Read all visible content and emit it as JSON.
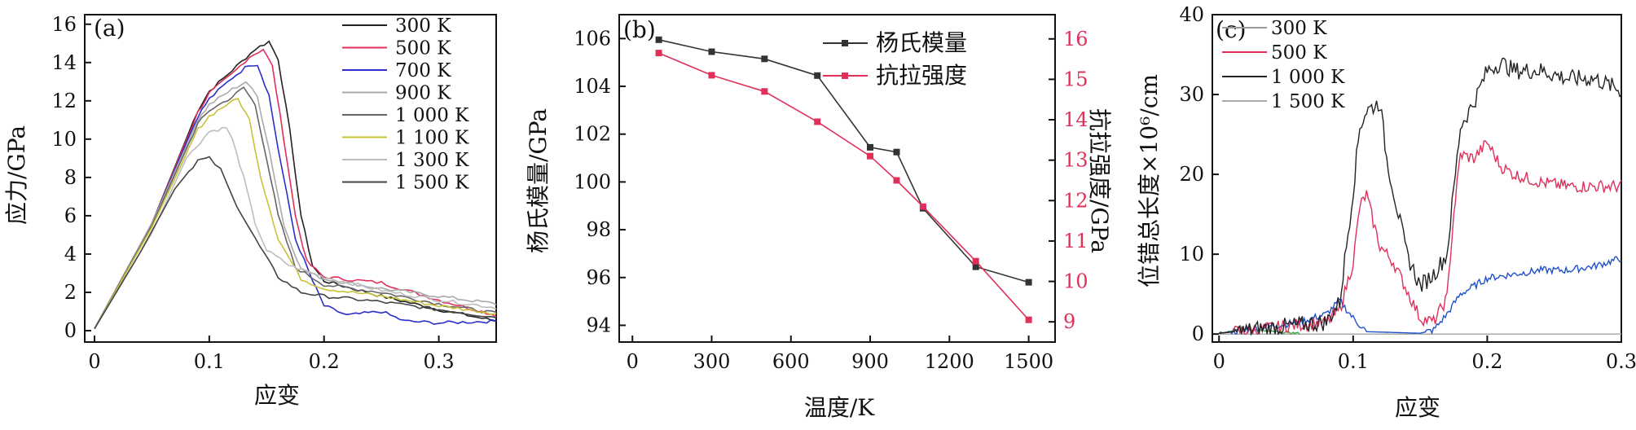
{
  "chart_data": [
    {
      "panel_label": "(a)",
      "type": "line",
      "xlabel": "应变",
      "ylabel": "应力/GPa",
      "xlim": [
        0,
        0.35
      ],
      "ylim": [
        0,
        16.5
      ],
      "x_ticks": [
        "0",
        "0.1",
        "0.2",
        "0.3"
      ],
      "x_tick_values": [
        0,
        0.1,
        0.2,
        0.3
      ],
      "y_ticks": [
        "0",
        "2",
        "4",
        "6",
        "8",
        "10",
        "12",
        "14",
        "16"
      ],
      "y_tick_values": [
        0,
        2,
        4,
        6,
        8,
        10,
        12,
        14,
        16
      ],
      "legend_position": "top-right",
      "series": [
        {
          "name": "300 K",
          "color": "#222222",
          "points": [
            [
              0,
              0.1
            ],
            [
              0.05,
              5.6
            ],
            [
              0.09,
              11.5
            ],
            [
              0.1,
              12.5
            ],
            [
              0.12,
              13.6
            ],
            [
              0.14,
              14.7
            ],
            [
              0.152,
              15.1
            ],
            [
              0.16,
              14.2
            ],
            [
              0.17,
              10.5
            ],
            [
              0.18,
              6.0
            ],
            [
              0.19,
              3.4
            ],
            [
              0.2,
              2.6
            ],
            [
              0.25,
              1.8
            ],
            [
              0.3,
              1.1
            ],
            [
              0.35,
              0.5
            ]
          ]
        },
        {
          "name": "500 K",
          "color": "#e0305a",
          "points": [
            [
              0,
              0.1
            ],
            [
              0.05,
              5.6
            ],
            [
              0.09,
              11.4
            ],
            [
              0.1,
              12.4
            ],
            [
              0.12,
              13.4
            ],
            [
              0.135,
              14.3
            ],
            [
              0.147,
              14.7
            ],
            [
              0.155,
              13.8
            ],
            [
              0.165,
              10.0
            ],
            [
              0.175,
              6.0
            ],
            [
              0.185,
              3.6
            ],
            [
              0.2,
              2.8
            ],
            [
              0.25,
              2.5
            ],
            [
              0.3,
              1.6
            ],
            [
              0.35,
              0.8
            ]
          ]
        },
        {
          "name": "700 K",
          "color": "#2a2fc9",
          "points": [
            [
              0,
              0.1
            ],
            [
              0.05,
              5.6
            ],
            [
              0.09,
              11.2
            ],
            [
              0.1,
              12.1
            ],
            [
              0.12,
              13.2
            ],
            [
              0.135,
              13.9
            ],
            [
              0.142,
              13.9
            ],
            [
              0.152,
              12.3
            ],
            [
              0.16,
              9.5
            ],
            [
              0.175,
              4.8
            ],
            [
              0.19,
              2.6
            ],
            [
              0.2,
              1.3
            ],
            [
              0.22,
              0.8
            ],
            [
              0.25,
              1.0
            ],
            [
              0.27,
              0.5
            ],
            [
              0.3,
              0.4
            ],
            [
              0.35,
              0.5
            ]
          ]
        },
        {
          "name": "900 K",
          "color": "#aaaaaa",
          "points": [
            [
              0,
              0.1
            ],
            [
              0.05,
              5.6
            ],
            [
              0.09,
              11.0
            ],
            [
              0.1,
              11.8
            ],
            [
              0.12,
              12.6
            ],
            [
              0.132,
              13.0
            ],
            [
              0.142,
              12.2
            ],
            [
              0.152,
              9.5
            ],
            [
              0.165,
              5.5
            ],
            [
              0.18,
              3.2
            ],
            [
              0.2,
              2.7
            ],
            [
              0.25,
              2.2
            ],
            [
              0.3,
              1.8
            ],
            [
              0.35,
              1.4
            ]
          ]
        },
        {
          "name": "1 000 K",
          "color": "#666666",
          "points": [
            [
              0,
              0.1
            ],
            [
              0.05,
              5.5
            ],
            [
              0.09,
              10.8
            ],
            [
              0.1,
              11.5
            ],
            [
              0.12,
              12.2
            ],
            [
              0.13,
              12.7
            ],
            [
              0.14,
              11.8
            ],
            [
              0.15,
              9.0
            ],
            [
              0.16,
              6.0
            ],
            [
              0.175,
              3.3
            ],
            [
              0.2,
              2.4
            ],
            [
              0.25,
              2.0
            ],
            [
              0.3,
              1.4
            ],
            [
              0.35,
              0.9
            ]
          ]
        },
        {
          "name": "1 100 K",
          "color": "#c9c236",
          "points": [
            [
              0,
              0.1
            ],
            [
              0.05,
              5.4
            ],
            [
              0.09,
              10.5
            ],
            [
              0.1,
              11.2
            ],
            [
              0.115,
              11.8
            ],
            [
              0.125,
              12.1
            ],
            [
              0.135,
              11.0
            ],
            [
              0.145,
              8.0
            ],
            [
              0.16,
              4.8
            ],
            [
              0.18,
              2.7
            ],
            [
              0.2,
              2.2
            ],
            [
              0.25,
              1.8
            ],
            [
              0.3,
              1.3
            ],
            [
              0.35,
              0.9
            ]
          ]
        },
        {
          "name": "1 300 K",
          "color": "#bdbdbd",
          "points": [
            [
              0,
              0.1
            ],
            [
              0.05,
              5.1
            ],
            [
              0.08,
              9.0
            ],
            [
              0.1,
              10.4
            ],
            [
              0.115,
              10.6
            ],
            [
              0.12,
              10.0
            ],
            [
              0.13,
              8.0
            ],
            [
              0.14,
              5.6
            ],
            [
              0.15,
              4.2
            ],
            [
              0.17,
              3.4
            ],
            [
              0.2,
              2.8
            ],
            [
              0.25,
              2.1
            ],
            [
              0.3,
              1.6
            ],
            [
              0.35,
              1.2
            ]
          ]
        },
        {
          "name": "1 500 K",
          "color": "#444444",
          "points": [
            [
              0,
              0.1
            ],
            [
              0.04,
              4.1
            ],
            [
              0.07,
              7.4
            ],
            [
              0.09,
              8.9
            ],
            [
              0.1,
              9.0
            ],
            [
              0.11,
              8.4
            ],
            [
              0.12,
              7.0
            ],
            [
              0.14,
              4.8
            ],
            [
              0.16,
              2.8
            ],
            [
              0.18,
              2.0
            ],
            [
              0.2,
              1.8
            ],
            [
              0.25,
              1.5
            ],
            [
              0.3,
              1.1
            ],
            [
              0.35,
              0.7
            ]
          ]
        }
      ]
    },
    {
      "panel_label": "(b)",
      "type": "line",
      "xlabel": "温度/K",
      "ylabel": "杨氏模量/GPa",
      "ylabel_right": "抗拉强度/GPa",
      "xlim": [
        -50,
        1600
      ],
      "ylim": [
        93.3,
        107
      ],
      "ylim_right": [
        8.5,
        16.6
      ],
      "x_ticks": [
        "0",
        "300",
        "600",
        "900",
        "1200",
        "1500"
      ],
      "x_tick_values": [
        0,
        300,
        600,
        900,
        1200,
        1500
      ],
      "y_ticks": [
        "94",
        "96",
        "98",
        "100",
        "102",
        "104",
        "106"
      ],
      "y_tick_values": [
        94,
        96,
        98,
        100,
        102,
        104,
        106
      ],
      "y_ticks_right": [
        "9",
        "10",
        "11",
        "12",
        "13",
        "14",
        "15",
        "16"
      ],
      "y_tick_values_right": [
        9,
        10,
        11,
        12,
        13,
        14,
        15,
        16
      ],
      "right_axis_color": "#e0305a",
      "legend_position": "top-right",
      "series": [
        {
          "name": "杨氏模量",
          "axis": "left",
          "color": "#333333",
          "marker": "square",
          "x": [
            100,
            300,
            500,
            700,
            900,
            1000,
            1100,
            1300,
            1500
          ],
          "values": [
            105.95,
            105.45,
            105.15,
            104.45,
            101.45,
            101.25,
            98.9,
            96.45,
            95.8
          ]
        },
        {
          "name": "抗拉强度",
          "axis": "right",
          "color": "#e0305a",
          "marker": "square",
          "x": [
            100,
            300,
            500,
            700,
            900,
            1000,
            1100,
            1300,
            1500
          ],
          "values": [
            15.65,
            15.1,
            14.7,
            13.95,
            13.1,
            12.5,
            11.85,
            10.5,
            9.05
          ]
        }
      ]
    },
    {
      "panel_label": "(c)",
      "type": "line",
      "xlabel": "应变",
      "ylabel": "位错总长度×10⁶/cm",
      "xlim": [
        -0.005,
        0.3
      ],
      "ylim": [
        -1,
        40
      ],
      "x_ticks": [
        "0",
        "0.1",
        "0.2",
        "0.3"
      ],
      "x_tick_values": [
        0,
        0.1,
        0.2,
        0.3
      ],
      "y_ticks": [
        "0",
        "10",
        "20",
        "30",
        "40"
      ],
      "y_tick_values": [
        0,
        10,
        20,
        30,
        40
      ],
      "legend_position": "top-left",
      "series": [
        {
          "name": "300 K",
          "color": "#999999",
          "points": [
            [
              0,
              0
            ],
            [
              0.3,
              0
            ]
          ]
        },
        {
          "name": "500 K",
          "color": "#e0305a",
          "points": [
            [
              0,
              0.1
            ],
            [
              0.08,
              1.5
            ],
            [
              0.09,
              3.0
            ],
            [
              0.1,
              9.0
            ],
            [
              0.105,
              16.0
            ],
            [
              0.11,
              17.5
            ],
            [
              0.115,
              14.0
            ],
            [
              0.12,
              11.0
            ],
            [
              0.13,
              9.0
            ],
            [
              0.14,
              5.5
            ],
            [
              0.15,
              2.0
            ],
            [
              0.16,
              1.5
            ],
            [
              0.17,
              4.5
            ],
            [
              0.175,
              15.0
            ],
            [
              0.18,
              22.5
            ],
            [
              0.19,
              22.0
            ],
            [
              0.2,
              24.0
            ],
            [
              0.21,
              21.0
            ],
            [
              0.22,
              20.0
            ],
            [
              0.24,
              19.0
            ],
            [
              0.26,
              18.5
            ],
            [
              0.28,
              18.5
            ],
            [
              0.3,
              18.5
            ]
          ]
        },
        {
          "name": "1 000 K",
          "color": "#222222",
          "points": [
            [
              0,
              0.1
            ],
            [
              0.08,
              1.5
            ],
            [
              0.09,
              4.0
            ],
            [
              0.1,
              18.0
            ],
            [
              0.105,
              26.0
            ],
            [
              0.11,
              28.0
            ],
            [
              0.12,
              29.0
            ],
            [
              0.125,
              22.0
            ],
            [
              0.13,
              18.0
            ],
            [
              0.14,
              10.0
            ],
            [
              0.15,
              6.0
            ],
            [
              0.16,
              7.5
            ],
            [
              0.17,
              10.0
            ],
            [
              0.175,
              18.0
            ],
            [
              0.18,
              26.0
            ],
            [
              0.19,
              29.0
            ],
            [
              0.2,
              33.0
            ],
            [
              0.21,
              34.0
            ],
            [
              0.22,
              33.0
            ],
            [
              0.24,
              33.0
            ],
            [
              0.26,
              32.0
            ],
            [
              0.28,
              32.0
            ],
            [
              0.3,
              30.5
            ]
          ]
        },
        {
          "name": "1 500 K",
          "color": "#aaaaaa",
          "points": [
            [
              0,
              0
            ],
            [
              0.3,
              0
            ]
          ]
        },
        {
          "name": "",
          "color": "#1f52c9",
          "points": [
            [
              0,
              0.1
            ],
            [
              0.06,
              1.5
            ],
            [
              0.08,
              2.5
            ],
            [
              0.09,
              4.2
            ],
            [
              0.1,
              2.0
            ],
            [
              0.11,
              0.3
            ],
            [
              0.15,
              0.1
            ],
            [
              0.16,
              0.5
            ],
            [
              0.17,
              2.5
            ],
            [
              0.18,
              5.0
            ],
            [
              0.2,
              7.0
            ],
            [
              0.22,
              7.5
            ],
            [
              0.24,
              8.0
            ],
            [
              0.26,
              8.0
            ],
            [
              0.28,
              8.5
            ],
            [
              0.3,
              9.5
            ]
          ]
        },
        {
          "name": "",
          "color": "#3aa83a",
          "points": [
            [
              0,
              0.2
            ],
            [
              0.02,
              0.6
            ],
            [
              0.04,
              0.3
            ],
            [
              0.06,
              0.1
            ]
          ]
        }
      ]
    }
  ]
}
